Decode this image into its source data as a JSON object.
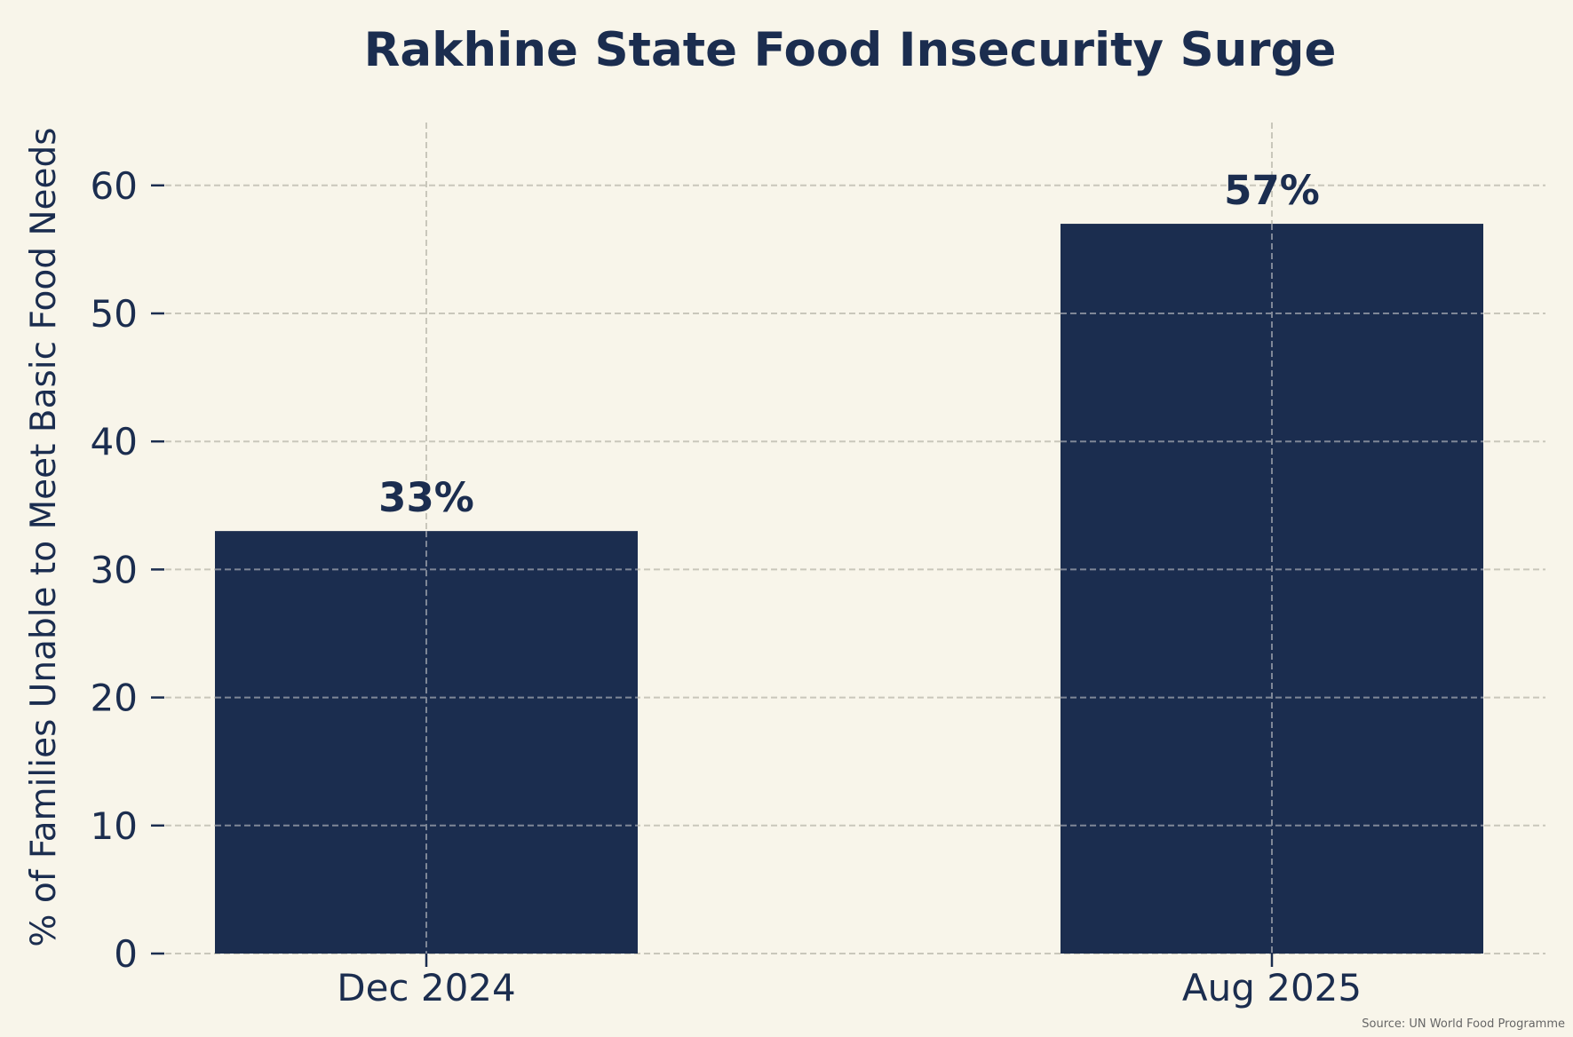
{
  "colors": {
    "background": "#f8f5ea",
    "bar": "#1b2d4f",
    "text": "#1b2d4f",
    "grid_on_background": "#c9c7bb",
    "grid_on_bar": "#7f8797",
    "source_text": "#666666"
  },
  "chart_data": {
    "type": "bar",
    "title": "Rakhine State Food Insecurity Surge",
    "xlabel": "",
    "ylabel": "% of Families Unable to Meet Basic Food Needs",
    "categories": [
      "Dec 2024",
      "Aug 2025"
    ],
    "values": [
      33,
      57
    ],
    "data_labels": [
      "33%",
      "57%"
    ],
    "ylim": [
      0,
      65
    ],
    "yticks": [
      0,
      10,
      20,
      30,
      40,
      50,
      60
    ],
    "grid": true,
    "grid_style": "dashed",
    "source": "Source: UN World Food Programme"
  }
}
